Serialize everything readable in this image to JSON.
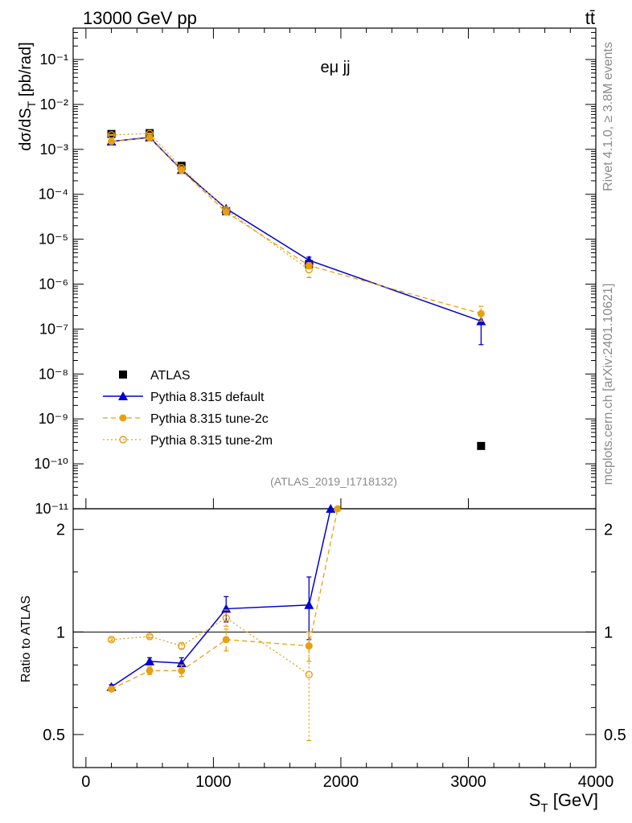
{
  "header": {
    "left": "13000 GeV pp",
    "right": "tt̄"
  },
  "side_labels": {
    "rivet": "Rivet 4.1.0, ≥ 3.8M events",
    "mcplots": "mcplots.cern.ch [arXiv:2401.10621]"
  },
  "chart_data": [
    {
      "type": "line",
      "panel": "main",
      "annotation": "eμ jj",
      "watermark": "(ATLAS_2019_I1718132)",
      "ylabel": "dσ/dS_T [pb/rad]",
      "yscale": "log",
      "ylim": [
        1e-11,
        0.5
      ],
      "xlim": [
        -100,
        4000
      ],
      "ytick_exponents": [
        -11,
        -10,
        -9,
        -8,
        -7,
        -6,
        -5,
        -4,
        -3,
        -2,
        -1
      ],
      "ytick_labels": [
        "10⁻¹¹",
        "10⁻¹⁰",
        "10⁻⁹",
        "10⁻⁸",
        "10⁻⁷",
        "10⁻⁶",
        "10⁻⁵",
        "10⁻⁴",
        "10⁻³",
        "10⁻²",
        "10⁻¹"
      ],
      "legend_position": "lower-left",
      "series": [
        {
          "name": "ATLAS",
          "style": "data",
          "color": "#000000",
          "x": [
            200,
            500,
            750,
            1100,
            1750,
            3100
          ],
          "y": [
            0.0022,
            0.0023,
            0.00043,
            4.2e-05,
            2.8e-06,
            2.5e-10
          ]
        },
        {
          "name": "Pythia 8.315 default",
          "style": "solid-triangle",
          "color": "#0000cc",
          "x": [
            200,
            500,
            750,
            1100,
            1750,
            3100
          ],
          "y": [
            0.0015,
            0.00185,
            0.00035,
            4.8e-05,
            3.4e-06,
            1.5e-07
          ],
          "yerr_low": [
            0.00145,
            0.0018,
            0.00033,
            4.4e-05,
            2.8e-06,
            4.5e-08
          ],
          "yerr_high": [
            0.00155,
            0.0019,
            0.00037,
            5.2e-05,
            4e-06,
            2.2e-07
          ]
        },
        {
          "name": "Pythia 8.315 tune-2c",
          "style": "dashed-filled-circle",
          "color": "#e8a010",
          "x": [
            200,
            500,
            750,
            1100,
            1750,
            3100
          ],
          "y": [
            0.0015,
            0.0018,
            0.00034,
            4e-05,
            2.6e-06,
            2.2e-07
          ],
          "yerr_low": [
            0.00145,
            0.00175,
            0.00032,
            3.7e-05,
            2.2e-06,
            1.5e-07
          ],
          "yerr_high": [
            0.00155,
            0.00185,
            0.00036,
            4.3e-05,
            3e-06,
            3.2e-07
          ]
        },
        {
          "name": "Pythia 8.315 tune-2m",
          "style": "dotted-open-circle",
          "color": "#e8a010",
          "x": [
            200,
            500,
            750,
            1100,
            1750
          ],
          "y": [
            0.0021,
            0.00225,
            0.00039,
            4.5e-05,
            2.1e-06
          ],
          "yerr_low": [
            0.00205,
            0.0022,
            0.00037,
            4.1e-05,
            1.4e-06
          ],
          "yerr_high": [
            0.00215,
            0.0023,
            0.00041,
            4.9e-05,
            2.8e-06
          ]
        }
      ]
    },
    {
      "type": "line",
      "panel": "ratio",
      "ylabel": "Ratio to ATLAS",
      "xlabel": "S_T [GeV]",
      "yscale": "log",
      "ylim": [
        0.4,
        2.3
      ],
      "xlim": [
        -100,
        4000
      ],
      "yticks": [
        0.5,
        1,
        2
      ],
      "ytick_labels": [
        "0.5",
        "1",
        "2"
      ],
      "xticks": [
        0,
        1000,
        2000,
        3000,
        4000
      ],
      "xtick_labels": [
        "0",
        "1000",
        "2000",
        "3000",
        "4000"
      ],
      "reference_line": 1,
      "series": [
        {
          "name": "Pythia 8.315 default",
          "style": "solid-triangle",
          "color": "#0000cc",
          "x": [
            200,
            500,
            750,
            1100,
            1750,
            1920
          ],
          "y": [
            0.69,
            0.82,
            0.81,
            1.17,
            1.2,
            2.3
          ],
          "yerr_low": [
            0.68,
            0.8,
            0.78,
            1.07,
            0.95,
            null
          ],
          "yerr_high": [
            0.7,
            0.84,
            0.84,
            1.27,
            1.45,
            null
          ]
        },
        {
          "name": "Pythia 8.315 tune-2c",
          "style": "dashed-filled-circle",
          "color": "#e8a010",
          "x": [
            200,
            500,
            750,
            1100,
            1750,
            1975
          ],
          "y": [
            0.68,
            0.77,
            0.77,
            0.95,
            0.91,
            2.3
          ],
          "yerr_low": [
            0.67,
            0.75,
            0.74,
            0.88,
            0.82,
            null
          ],
          "yerr_high": [
            0.69,
            0.79,
            0.8,
            1.02,
            1.0,
            null
          ]
        },
        {
          "name": "Pythia 8.315 tune-2m",
          "style": "dotted-open-circle",
          "color": "#e8a010",
          "x": [
            200,
            500,
            750,
            1100,
            1750
          ],
          "y": [
            0.95,
            0.97,
            0.91,
            1.1,
            0.75
          ],
          "yerr_low": [
            0.94,
            0.96,
            0.89,
            1.04,
            0.48
          ],
          "yerr_high": [
            0.96,
            0.98,
            0.93,
            1.16,
            1.0
          ]
        }
      ]
    }
  ]
}
